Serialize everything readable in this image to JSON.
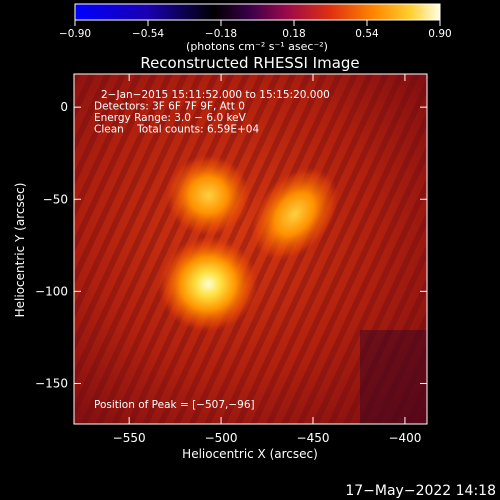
{
  "chart_data": {
    "type": "heatmap",
    "title": "Reconstructed RHESSI Image",
    "xlabel": "Heliocentric X (arcsec)",
    "ylabel": "Heliocentric Y (arcsec)",
    "xlim": [
      -580,
      -388
    ],
    "ylim": [
      -172,
      18
    ],
    "x_ticks": [
      -550,
      -500,
      -450,
      -400
    ],
    "x_tick_labels": [
      "−550",
      "−500",
      "−450",
      "−400"
    ],
    "y_ticks": [
      0,
      -50,
      -100,
      -150
    ],
    "y_tick_labels": [
      "0",
      "−50",
      "−100",
      "−150"
    ],
    "colorbar": {
      "range": [
        -0.9,
        0.9
      ],
      "ticks": [
        -0.9,
        -0.54,
        -0.18,
        0.18,
        0.54,
        0.9
      ],
      "tick_labels": [
        "−0.90",
        "−0.54",
        "−0.18",
        "0.18",
        "0.54",
        "0.90"
      ],
      "unit_label": "(photons cm⁻² s⁻¹ asec⁻²)"
    },
    "annotations": [
      "2−Jan−2015 15:11:52.000 to 15:15:20.000",
      "Detectors: 3F 6F 7F 9F, Att 0",
      "Energy Range: 3.0 − 6.0 keV",
      "Clean    Total counts: 6.59E+04"
    ],
    "peak_label": "Position of Peak = [−507,−96]",
    "peak": [
      -507,
      -96
    ],
    "sources": [
      {
        "x": -507,
        "y": -96,
        "intensity": 0.9
      },
      {
        "x": -507,
        "y": -48,
        "intensity": 0.55
      },
      {
        "x": -460,
        "y": -58,
        "intensity": 0.58
      }
    ],
    "grid": false
  },
  "footer": {
    "timestamp": "17−May−2022 14:18"
  }
}
